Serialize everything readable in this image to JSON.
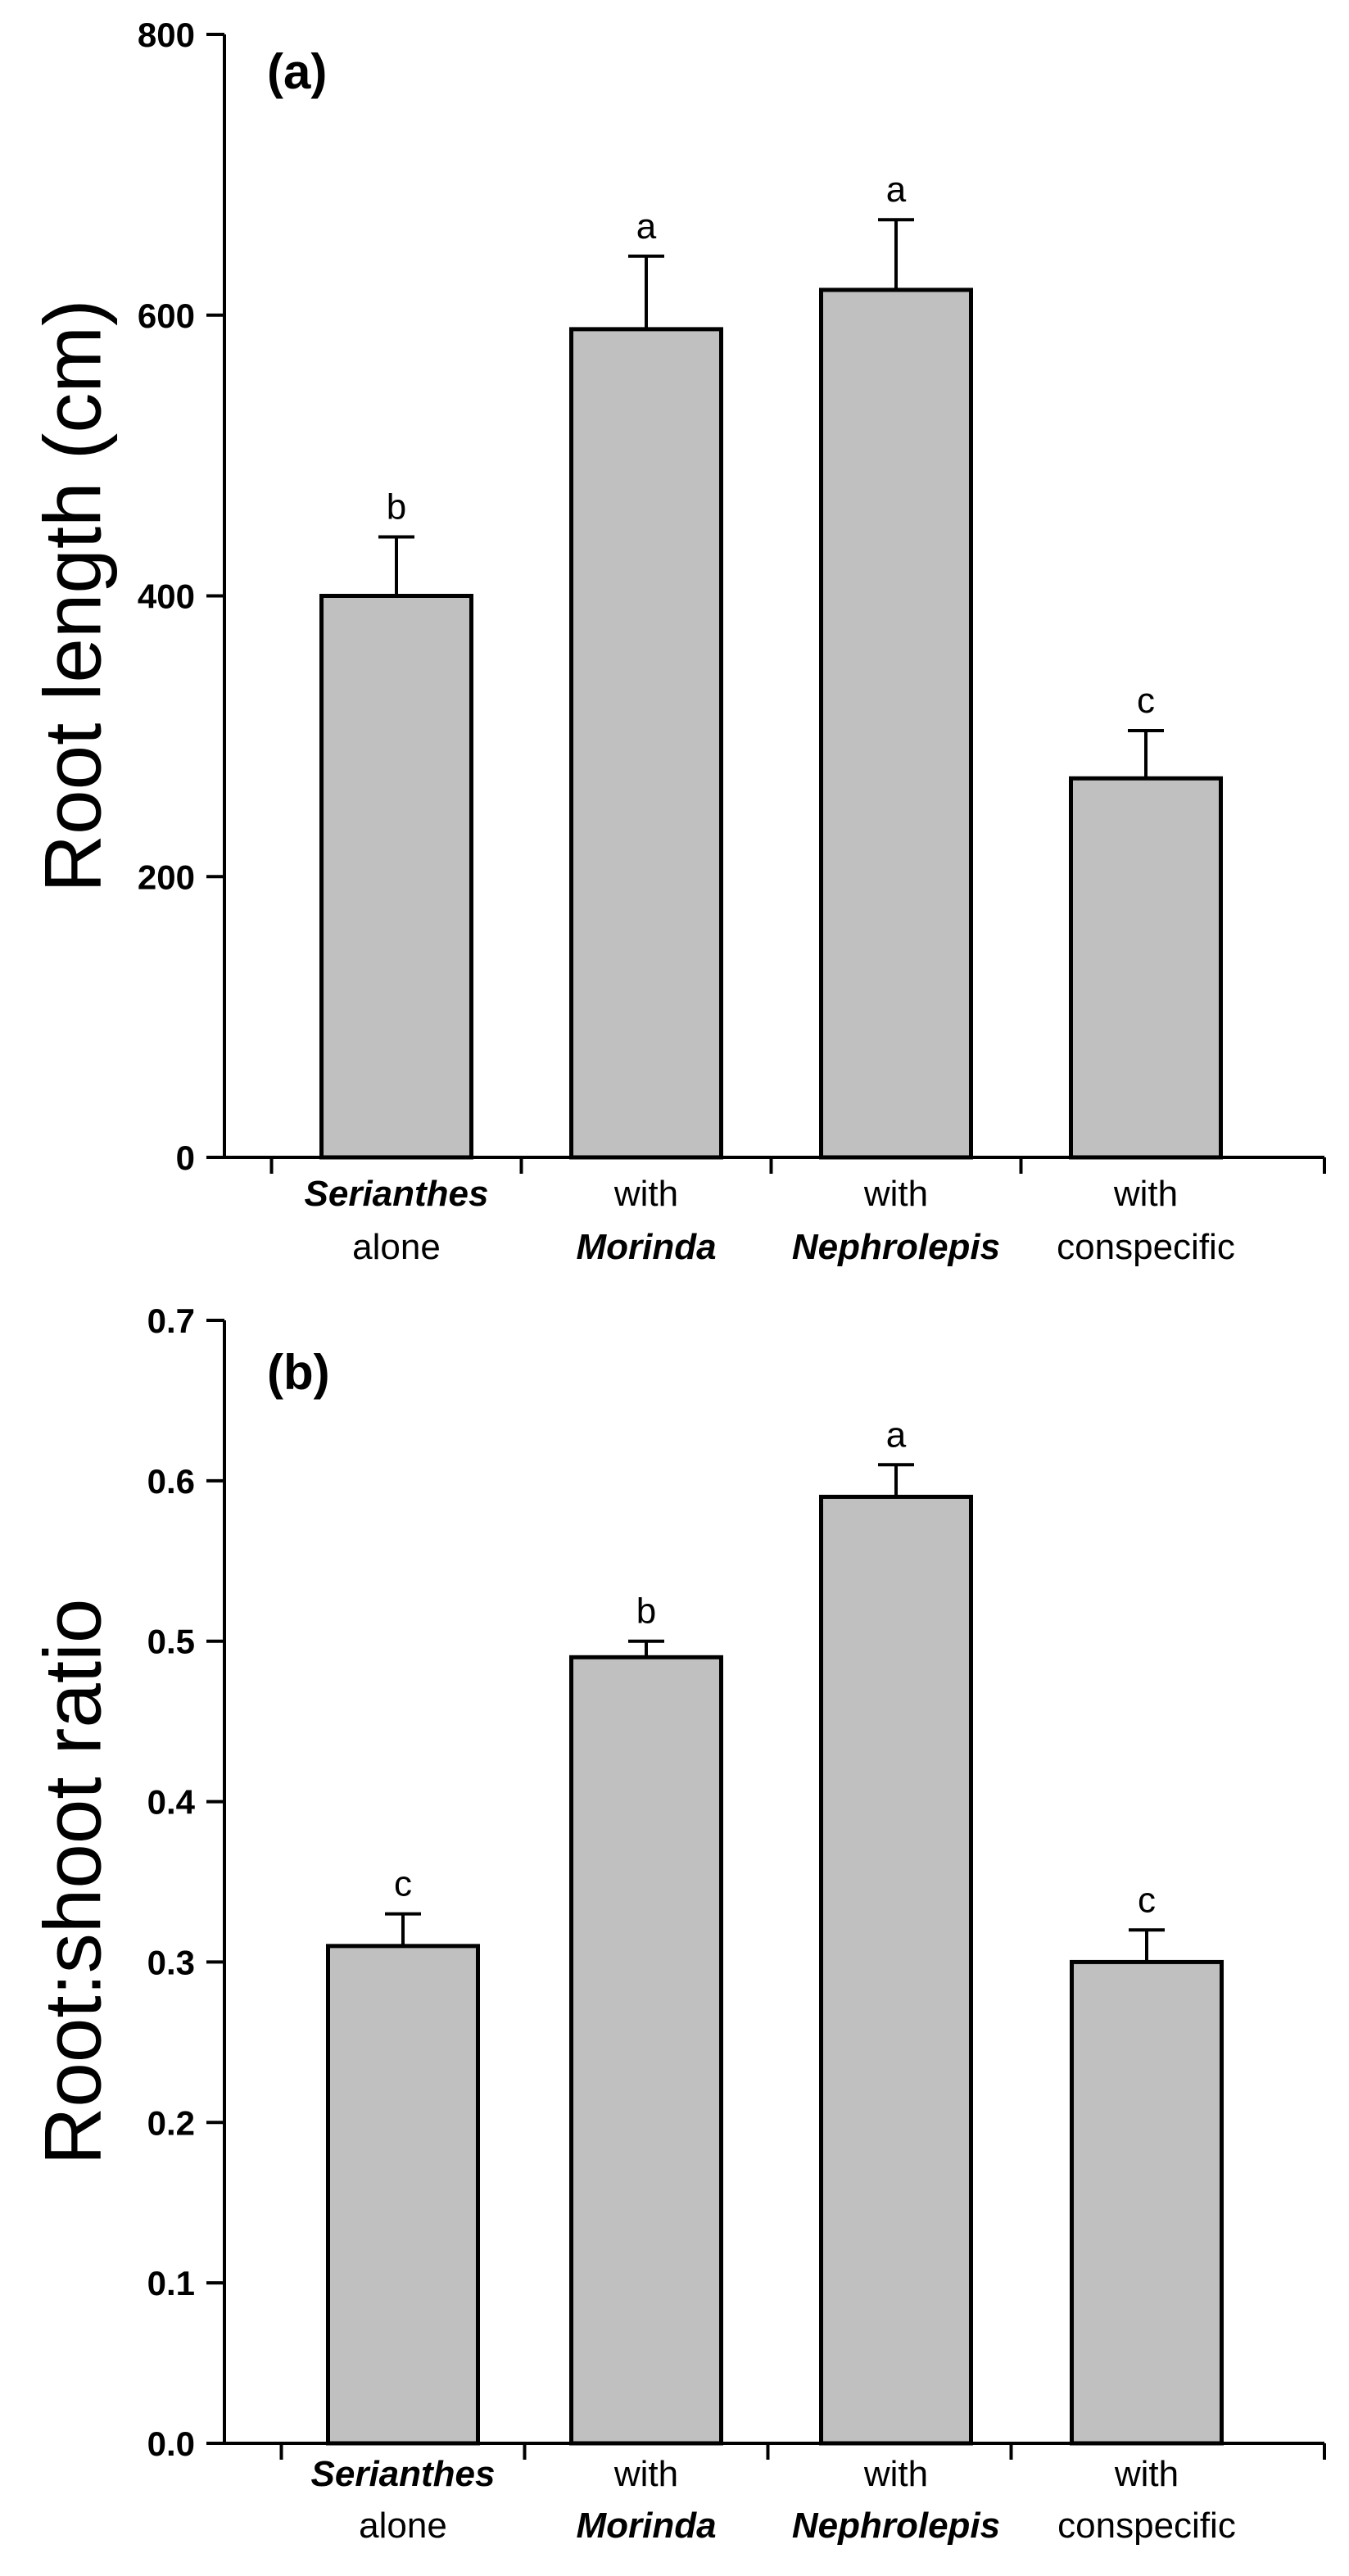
{
  "chart_data": [
    {
      "type": "bar",
      "panel_label": "(a)",
      "ylabel": "Root length (cm)",
      "ylim": [
        0,
        800
      ],
      "yticks": [
        "0",
        "200",
        "400",
        "600",
        "800"
      ],
      "categories": [
        {
          "line1": "Serianthes",
          "line1_italic": true,
          "line2": "alone",
          "line2_italic": false
        },
        {
          "line1": "with",
          "line1_italic": false,
          "line2": "Morinda",
          "line2_italic": true
        },
        {
          "line1": "with",
          "line1_italic": false,
          "line2": "Nephrolepis",
          "line2_italic": true
        },
        {
          "line1": "with",
          "line1_italic": false,
          "line2": "conspecific",
          "line2_italic": false
        }
      ],
      "values": [
        400,
        590,
        618,
        270
      ],
      "errors": [
        42,
        52,
        50,
        34
      ],
      "letters": [
        "b",
        "a",
        "a",
        "c"
      ],
      "bar_color": "#c0c0c0"
    },
    {
      "type": "bar",
      "panel_label": "(b)",
      "ylabel": "Root:shoot ratio",
      "ylim": [
        0,
        0.7
      ],
      "yticks": [
        "0.0",
        "0.1",
        "0.2",
        "0.3",
        "0.4",
        "0.5",
        "0.6",
        "0.7"
      ],
      "categories": [
        {
          "line1": "Serianthes",
          "line1_italic": true,
          "line2": "alone",
          "line2_italic": false
        },
        {
          "line1": "with",
          "line1_italic": false,
          "line2": "Morinda",
          "line2_italic": true
        },
        {
          "line1": "with",
          "line1_italic": false,
          "line2": "Nephrolepis",
          "line2_italic": true
        },
        {
          "line1": "with",
          "line1_italic": false,
          "line2": "conspecific",
          "line2_italic": false
        }
      ],
      "values": [
        0.31,
        0.49,
        0.59,
        0.3
      ],
      "errors": [
        0.02,
        0.01,
        0.02,
        0.02
      ],
      "letters": [
        "c",
        "b",
        "a",
        "c"
      ],
      "bar_color": "#c0c0c0"
    }
  ]
}
